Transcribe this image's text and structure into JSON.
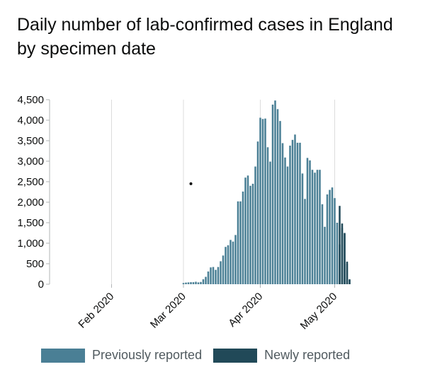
{
  "title": "Daily number of lab-confirmed cases in England by specimen date",
  "legend": {
    "previously": "Previously reported",
    "newly": "Newly reported"
  },
  "colors": {
    "previously": "#4a7f95",
    "newly": "#214958",
    "grid": "#dcdcdc",
    "axis": "#b1b4b6",
    "text": "#0b0c0c"
  },
  "chart_data": {
    "type": "bar",
    "xlabel": "",
    "ylabel": "",
    "ylim": [
      0,
      4500
    ],
    "yticks": [
      0,
      500,
      1000,
      1500,
      2000,
      2500,
      3000,
      3500,
      4000,
      4500
    ],
    "ytick_labels": [
      "0",
      "500",
      "1,000",
      "1,500",
      "2,000",
      "2,500",
      "3,000",
      "3,500",
      "4,000",
      "4,500"
    ],
    "xlim": [
      "2020-01-07",
      "2020-05-26"
    ],
    "xticks": [
      {
        "date": "2020-02-01",
        "label": "Feb 2020"
      },
      {
        "date": "2020-03-01",
        "label": "Mar 2020"
      },
      {
        "date": "2020-04-01",
        "label": "Apr 2020"
      },
      {
        "date": "2020-05-01",
        "label": "May 2020"
      }
    ],
    "grid": "vertical",
    "legend_position": "bottom",
    "series": [
      {
        "name": "Previously reported",
        "color": "#4a7f95",
        "x": [
          "2020-03-01",
          "2020-03-02",
          "2020-03-03",
          "2020-03-04",
          "2020-03-05",
          "2020-03-06",
          "2020-03-07",
          "2020-03-08",
          "2020-03-09",
          "2020-03-10",
          "2020-03-11",
          "2020-03-12",
          "2020-03-13",
          "2020-03-14",
          "2020-03-15",
          "2020-03-16",
          "2020-03-17",
          "2020-03-18",
          "2020-03-19",
          "2020-03-20",
          "2020-03-21",
          "2020-03-22",
          "2020-03-23",
          "2020-03-24",
          "2020-03-25",
          "2020-03-26",
          "2020-03-27",
          "2020-03-28",
          "2020-03-29",
          "2020-03-30",
          "2020-03-31",
          "2020-04-01",
          "2020-04-02",
          "2020-04-03",
          "2020-04-04",
          "2020-04-05",
          "2020-04-06",
          "2020-04-07",
          "2020-04-08",
          "2020-04-09",
          "2020-04-10",
          "2020-04-11",
          "2020-04-12",
          "2020-04-13",
          "2020-04-14",
          "2020-04-15",
          "2020-04-16",
          "2020-04-17",
          "2020-04-18",
          "2020-04-19",
          "2020-04-20",
          "2020-04-21",
          "2020-04-22",
          "2020-04-23",
          "2020-04-24",
          "2020-04-25",
          "2020-04-26",
          "2020-04-27",
          "2020-04-28",
          "2020-04-29",
          "2020-04-30",
          "2020-05-01",
          "2020-05-02",
          "2020-05-03",
          "2020-05-04",
          "2020-05-05",
          "2020-05-06",
          "2020-05-07"
        ],
        "values": [
          30,
          40,
          45,
          50,
          50,
          60,
          45,
          55,
          120,
          180,
          310,
          410,
          420,
          350,
          420,
          560,
          700,
          910,
          950,
          1080,
          1040,
          1200,
          2020,
          2020,
          2260,
          2600,
          2650,
          2400,
          2450,
          2870,
          3480,
          4060,
          4030,
          4040,
          3340,
          2990,
          4380,
          4480,
          4270,
          3980,
          3440,
          3090,
          2870,
          3380,
          3520,
          3650,
          3450,
          3450,
          2700,
          2080,
          3080,
          3020,
          2790,
          2720,
          2790,
          2790,
          1950,
          1400,
          2190,
          2300,
          2360,
          2100,
          1500,
          970,
          1370,
          1230,
          500,
          100
        ]
      },
      {
        "name": "Newly reported",
        "color": "#214958",
        "x": [
          "2020-05-03",
          "2020-05-04",
          "2020-05-05",
          "2020-05-06",
          "2020-05-07"
        ],
        "values": [
          1910,
          1480,
          1250,
          550,
          120
        ]
      }
    ],
    "annotations": [
      {
        "x": "2020-03-04",
        "y": 2450,
        "text": "•"
      }
    ]
  }
}
